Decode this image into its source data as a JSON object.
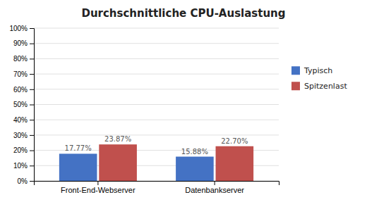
{
  "chart_data": {
    "type": "bar",
    "title": "Durchschnittliche CPU-Auslastung",
    "categories": [
      "Front-End-Webserver",
      "Datenbankserver"
    ],
    "series": [
      {
        "name": "Typisch",
        "values": [
          0.1777,
          0.1588
        ],
        "value_labels": [
          "17.77%",
          "15.88%"
        ],
        "color": "#4472C4"
      },
      {
        "name": "Spitzenlast",
        "values": [
          0.2387,
          0.227
        ],
        "value_labels": [
          "23.87%",
          "22.70%"
        ],
        "color": "#C0504D"
      }
    ],
    "ylim": [
      0,
      1.0
    ],
    "yticks": [
      {
        "value": 0.0,
        "label": "0%"
      },
      {
        "value": 0.1,
        "label": "10%"
      },
      {
        "value": 0.2,
        "label": "20%"
      },
      {
        "value": 0.3,
        "label": "30%"
      },
      {
        "value": 0.4,
        "label": "40%"
      },
      {
        "value": 0.5,
        "label": "50%"
      },
      {
        "value": 0.6,
        "label": "60%"
      },
      {
        "value": 0.7,
        "label": "70%"
      },
      {
        "value": 0.8,
        "label": "80%"
      },
      {
        "value": 0.9,
        "label": "90%"
      },
      {
        "value": 1.0,
        "label": "100%"
      }
    ],
    "grid": true,
    "legend": "right",
    "data_labels": true
  }
}
